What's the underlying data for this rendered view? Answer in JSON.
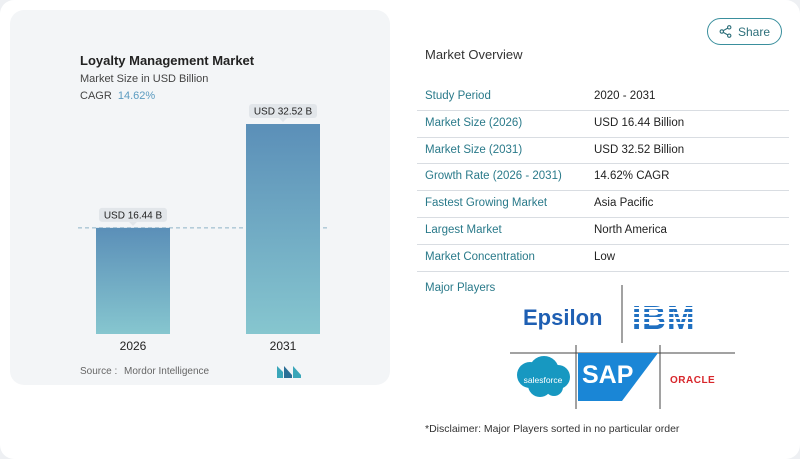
{
  "chart_card": {
    "title": "Loyalty Management Market",
    "subtitle": "Market Size in USD Billion",
    "cagr_label": "CAGR",
    "cagr_value": "14.62%",
    "source_label": "Source :",
    "source_value": "Mordor Intelligence"
  },
  "chart_data": {
    "type": "bar",
    "categories": [
      "2026",
      "2031"
    ],
    "values": [
      16.44,
      32.52
    ],
    "data_labels": [
      "USD 16.44 B",
      "USD 32.52 B"
    ],
    "ylim": [
      0,
      35
    ],
    "grid": false,
    "reference_line": 16.44,
    "bar_color_top": "#5b8fb8",
    "bar_color_bottom": "#86c6cf"
  },
  "share": {
    "label": "Share"
  },
  "overview": {
    "title": "Market Overview",
    "rows": [
      {
        "key": "Study Period",
        "value": "2020 - 2031"
      },
      {
        "key": "Market Size (2026)",
        "value": "USD 16.44 Billion"
      },
      {
        "key": "Market Size (2031)",
        "value": "USD 32.52 Billion"
      },
      {
        "key": "Growth Rate (2026 - 2031)",
        "value": "14.62% CAGR"
      },
      {
        "key": "Fastest Growing Market",
        "value": "Asia Pacific"
      },
      {
        "key": "Largest Market",
        "value": "North America"
      },
      {
        "key": "Market Concentration",
        "value": "Low"
      }
    ]
  },
  "players": {
    "title": "Major Players",
    "logos": [
      "Epsilon",
      "IBM",
      "salesforce",
      "SAP",
      "ORACLE"
    ]
  },
  "disclaimer": "*Disclaimer: Major Players sorted in no particular order",
  "colors": {
    "accent": "#2a7a8a",
    "cagr": "#5b9bc0"
  }
}
